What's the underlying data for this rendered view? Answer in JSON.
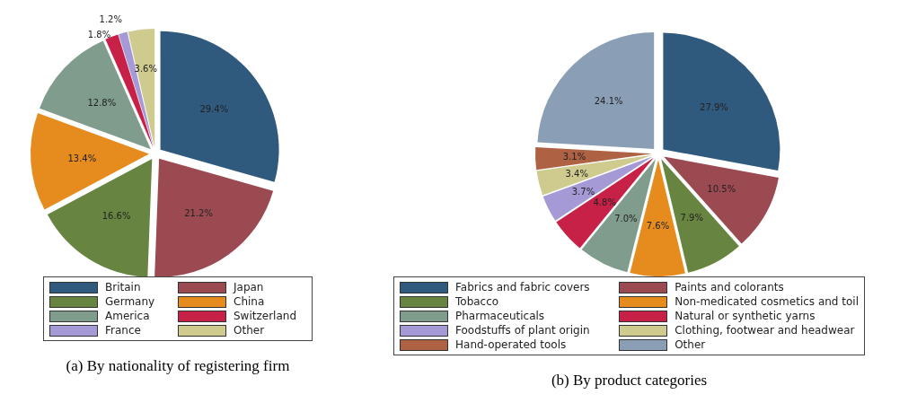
{
  "chart_data": [
    {
      "type": "pie",
      "title": "(a) By nationality of registering firm",
      "categories": [
        "Britain",
        "Japan",
        "Germany",
        "China",
        "America",
        "Switzerland",
        "France",
        "Other"
      ],
      "values": [
        29.4,
        21.2,
        16.6,
        13.4,
        12.8,
        1.8,
        1.2,
        3.6
      ],
      "colors": [
        "#30597e",
        "#9c4a52",
        "#678541",
        "#e68c1f",
        "#7f9c8c",
        "#c82148",
        "#a59ad6",
        "#cfcb8f"
      ],
      "value_labels": [
        "29.4%",
        "21.2%",
        "16.6%",
        "13.4%",
        "12.8%",
        "1.8%",
        "1.2%",
        "3.6%"
      ],
      "legend": "bottom"
    },
    {
      "type": "pie",
      "title": "(b) By product categories",
      "categories": [
        "Fabrics and fabric covers",
        "Paints and colorants",
        "Tobacco",
        "Non-medicated cosmetics and toil",
        "Pharmaceuticals",
        "Natural or synthetic yarns",
        "Foodstuffs of plant origin",
        "Clothing, footwear and headwear",
        "Hand-operated tools",
        "Other"
      ],
      "values": [
        27.9,
        10.5,
        7.9,
        7.6,
        7.0,
        4.8,
        3.7,
        3.4,
        3.1,
        24.1
      ],
      "colors": [
        "#30597e",
        "#9c4a52",
        "#678541",
        "#e68c1f",
        "#7f9c8c",
        "#c82148",
        "#a59ad6",
        "#cfcb8f",
        "#ae6143",
        "#8a9fb5"
      ],
      "value_labels": [
        "27.9%",
        "10.5%",
        "7.9%",
        "7.6%",
        "7.0%",
        "4.8%",
        "3.7%",
        "3.4%",
        "3.1%",
        "24.1%"
      ],
      "legend": "bottom"
    }
  ]
}
